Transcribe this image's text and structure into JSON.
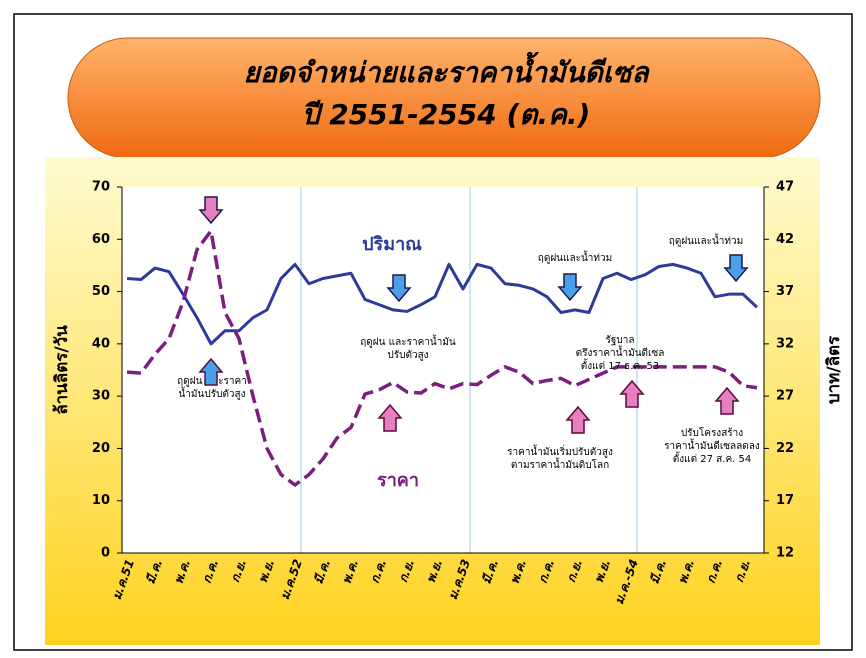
{
  "chart_data": {
    "type": "line",
    "title": [
      "ยอดจำหน่ายและราคาน้ำมันดีเซล",
      "ปี 2551-2554 (ต.ค.)"
    ],
    "y_label": "ล้านลิตร/วัน",
    "y2_label": "บาท/ลิตร",
    "categories": [
      "ม.ค.51",
      null,
      "มี.ค.",
      null,
      "พ.ค.",
      null,
      "ก.ค.",
      null,
      "ก.ย.",
      null,
      "พ.ย.",
      null,
      "ม.ค.52",
      null,
      "มี.ค.",
      null,
      "พ.ค.",
      null,
      "ก.ค.",
      null,
      "ก.ย.",
      null,
      "พ.ย.",
      null,
      "ม.ค.53",
      null,
      "มี.ค.",
      null,
      "พ.ค.",
      null,
      "ก.ค.",
      null,
      "ก.ย.",
      null,
      "พ.ย.",
      null,
      "ม.ค.-54",
      null,
      "มี.ค.",
      null,
      "พ.ค.",
      null,
      "ก.ค.",
      null,
      "ก.ย.",
      null
    ],
    "series": [
      {
        "name": "ปริมาณ",
        "color": "#2e3a9a",
        "axis": "y",
        "values": [
          52.5,
          52.3,
          54.5,
          53.8,
          49.5,
          45,
          40,
          42.5,
          42.5,
          45,
          46.5,
          52.5,
          55.2,
          51.5,
          52.5,
          53,
          53.5,
          48.5,
          47.5,
          46.5,
          46.2,
          47.5,
          49,
          55.2,
          50.5,
          55.2,
          54.5,
          51.5,
          51.2,
          50.5,
          49,
          46,
          46.5,
          46,
          52.5,
          53.5,
          52.3,
          53.2,
          54.8,
          55.2,
          54.5,
          53.5,
          49,
          49.5,
          49.5,
          47
        ]
      },
      {
        "name": "ราคา",
        "color": "#7b1f7f",
        "axis": "y2",
        "values": [
          29.3,
          29.2,
          31,
          32.5,
          36,
          41,
          42.8,
          35,
          32.5,
          27,
          22,
          19.5,
          18.5,
          19.5,
          21,
          23,
          24,
          27.2,
          27.6,
          28.3,
          27.4,
          27.3,
          28.2,
          27.7,
          28.2,
          28.1,
          29,
          29.8,
          29.3,
          28.2,
          28.5,
          28.7,
          28,
          28.6,
          29.2,
          29.8,
          29.8,
          29.8,
          29.8,
          29.8,
          29.8,
          29.8,
          29.8,
          29.3,
          28,
          27.8
        ]
      }
    ],
    "ylim": [
      0,
      70
    ],
    "yticks": [
      0,
      10,
      20,
      30,
      40,
      50,
      60,
      70
    ],
    "y2lim": [
      12,
      47
    ],
    "y2ticks": [
      12,
      17,
      22,
      27,
      32,
      37,
      42,
      47
    ],
    "annotations": [
      {
        "lines": [
          "ฤดูฝน และราคา",
          "น้ำมันปรับตัวสูง"
        ]
      },
      {
        "lines": [
          "ฤดูฝน และราคาน้ำมัน",
          "ปรับตัวสูง"
        ]
      },
      {
        "lines": [
          "ฤดูฝนและน้ำท่วม"
        ]
      },
      {
        "lines": [
          "ฤดูฝนและน้ำท่วม"
        ]
      },
      {
        "lines": [
          "รัฐบาล",
          "ตรึงราคาน้ำมันดีเซล",
          "ตั้งแต่ 17 ธ.ค. 53"
        ]
      },
      {
        "lines": [
          "ราคาน้ำมันเริ่มปรับตัวสูง",
          "ตามราคาน้ำมันดิบโลก"
        ]
      },
      {
        "lines": [
          "ปรับโครงสร้าง",
          "ราคาน้ำมันดีเซลลดลง",
          "ตั้งแต่ 27 ส.ค. 54"
        ]
      }
    ]
  }
}
